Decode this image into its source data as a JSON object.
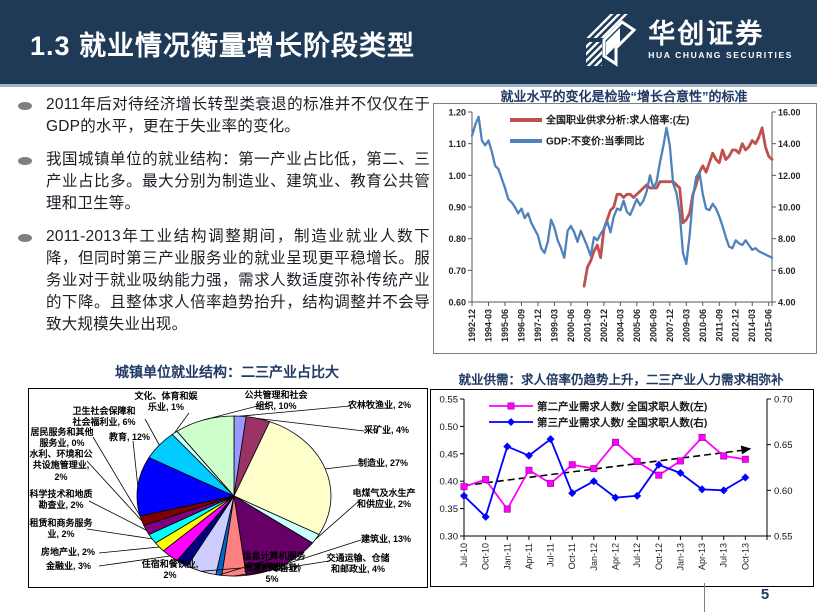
{
  "slide": {
    "header": {
      "title": "1.3 就业情况衡量增长阶段类型",
      "logo_cn": "华创证券",
      "logo_en": "HUA CHUANG SECURITIES"
    },
    "bullets": [
      "2011年后对待经济增长转型类衰退的标准并不仅仅在于GDP的水平，更在于失业率的变化。",
      "我国城镇单位的就业结构：第一产业占比低，第二、三产业占比多。最大分别为制造业、建筑业、教育公共管理和卫生等。",
      "2011-2013年工业结构调整期间，制造业就业人数下降，但同时第三产业服务业的就业呈现更平稳增长。服务业对于就业吸纳能力强，需求人数适度弥补传统产业的下降。且整体求人倍率趋势抬升，结构调整并不会导致大规模失业出现。"
    ],
    "page_number": "5"
  },
  "chart_data": [
    {
      "type": "line",
      "title": "就业水平的变化是检验“增长合意性”的标准",
      "x_labels": [
        "1992-12",
        "1994-03",
        "1995-06",
        "1996-09",
        "1997-12",
        "1999-03",
        "2000-06",
        "2001-09",
        "2002-12",
        "2004-03",
        "2005-06",
        "2006-09",
        "2007-12",
        "2009-03",
        "2010-06",
        "2011-09",
        "2012-12",
        "2014-03",
        "2015-06"
      ],
      "points_total": 92,
      "left_axis": {
        "min": 0.6,
        "max": 1.2,
        "step": 0.1,
        "ticks": [
          "1.20",
          "1.10",
          "1.00",
          "0.90",
          "0.80",
          "0.70",
          "0.60"
        ]
      },
      "right_axis": {
        "min": 4,
        "max": 16,
        "step": 2,
        "ticks": [
          "16.00",
          "14.00",
          "12.00",
          "10.00",
          "8.00",
          "6.00",
          "4.00"
        ]
      },
      "series": [
        {
          "name": "全国职业供求分析:求人倍率:(左)",
          "color": "#C0504D",
          "axis": "left",
          "width": 2.8,
          "start_index": 34,
          "values": [
            0.65,
            0.71,
            0.73,
            0.76,
            0.78,
            0.74,
            0.83,
            0.86,
            0.89,
            0.9,
            0.94,
            0.94,
            0.93,
            0.94,
            0.94,
            0.93,
            0.94,
            0.95,
            0.96,
            0.97,
            0.96,
            0.96,
            0.96,
            0.98,
            0.98,
            0.98,
            0.98,
            0.98,
            0.97,
            0.96,
            0.85,
            0.86,
            0.88,
            0.94,
            0.97,
            1.01,
            1.03,
            1.01,
            1.04,
            1.07,
            1.05,
            1.04,
            1.08,
            1.05,
            1.06,
            1.08,
            1.08,
            1.07,
            1.1,
            1.08,
            1.09,
            1.11,
            1.1,
            1.12,
            1.15,
            1.09,
            1.06,
            1.05
          ]
        },
        {
          "name": "GDP:不变价:当季同比",
          "color": "#4F81BD",
          "axis": "right",
          "width": 2.3,
          "start_index": 0,
          "values": [
            14.5,
            15.2,
            15.7,
            14.2,
            13.9,
            14.2,
            13.5,
            12.6,
            12.4,
            11.8,
            11.2,
            10.5,
            10.3,
            10.0,
            9.6,
            9.9,
            9.3,
            9.6,
            9.0,
            8.6,
            8.2,
            7.4,
            7.1,
            7.8,
            9.2,
            8.7,
            7.9,
            7.4,
            6.8,
            8.5,
            8.8,
            8.4,
            7.8,
            8.5,
            8.0,
            7.5,
            6.9,
            8.1,
            7.9,
            8.3,
            8.6,
            9.1,
            8.4,
            9.4,
            9.9,
            9.8,
            10.4,
            9.7,
            9.5,
            10.0,
            10.5,
            10.1,
            10.4,
            11.0,
            12.0,
            11.2,
            11.6,
            12.8,
            13.8,
            15.0,
            13.9,
            11.5,
            10.9,
            9.6,
            7.1,
            6.4,
            8.2,
            10.6,
            11.9,
            12.2,
            10.8,
            9.9,
            9.8,
            10.2,
            9.9,
            9.4,
            8.8,
            8.1,
            7.5,
            7.4,
            7.9,
            7.7,
            7.6,
            7.9,
            7.6,
            7.3,
            7.4,
            7.2,
            7.1,
            7.0,
            6.9,
            6.8
          ]
        }
      ]
    },
    {
      "type": "pie",
      "title": "城镇单位就业结构：二三产业占比大",
      "slices": [
        {
          "label": "农林牧渔业",
          "value": 2,
          "color": "#9999FF"
        },
        {
          "label": "采矿业",
          "value": 4,
          "color": "#993366"
        },
        {
          "label": "制造业",
          "value": 27,
          "color": "#FFFFCC"
        },
        {
          "label": "电煤气及水生产和供应业",
          "value": 2,
          "color": "#CCFFFF"
        },
        {
          "label": "建筑业",
          "value": 13,
          "color": "#660066"
        },
        {
          "label": "交通运输、仓储和邮政业",
          "value": 4,
          "color": "#FF8080"
        },
        {
          "label": "信息计算机服务和软件业",
          "value": 1,
          "color": "#0066CC"
        },
        {
          "label": "批发和零售业",
          "value": 5,
          "color": "#CCCCFF"
        },
        {
          "label": "住宿和餐饮业",
          "value": 2,
          "color": "#000080"
        },
        {
          "label": "金融业",
          "value": 3,
          "color": "#FF00FF"
        },
        {
          "label": "房地产业",
          "value": 2,
          "color": "#FFFF00"
        },
        {
          "label": "租赁和商务服务业",
          "value": 2,
          "color": "#00FFFF"
        },
        {
          "label": "科学技术和地质勘查业",
          "value": 2,
          "color": "#800080"
        },
        {
          "label": "水利、环境和公共设施管理业",
          "value": 2,
          "color": "#800000"
        },
        {
          "label": "居民服务和其他服务业",
          "value": 0,
          "color": "#008080"
        },
        {
          "label": "教育",
          "value": 12,
          "color": "#0000FF"
        },
        {
          "label": "卫生社会保障和社会福利业",
          "value": 6,
          "color": "#00CCFF"
        },
        {
          "label": "文化、体育和娱乐业",
          "value": 1,
          "color": "#CCFFFF"
        },
        {
          "label": "公共管理和社会组织",
          "value": 10,
          "color": "#CCFFCC"
        }
      ]
    },
    {
      "type": "line",
      "title": "就业供需：求人倍率仍趋势上升，二三产业人力需求相弥补",
      "x_labels": [
        "Jul-10",
        "Oct-10",
        "Jan-11",
        "Apr-11",
        "Jul-11",
        "Oct-11",
        "Jan-12",
        "Apr-12",
        "Jul-12",
        "Oct-12",
        "Jan-13",
        "Apr-13",
        "Jul-13",
        "Oct-13"
      ],
      "left_axis": {
        "min": 0.3,
        "max": 0.55,
        "step": 0.05,
        "ticks": [
          "0.55",
          "0.50",
          "0.45",
          "0.40",
          "0.35",
          "0.30"
        ]
      },
      "right_axis": {
        "min": 0.55,
        "max": 0.7,
        "step": 0.05,
        "ticks": [
          "0.70",
          "0.65",
          "0.60",
          "0.55"
        ]
      },
      "series": [
        {
          "name": "第二产业需求人数/ 全国求职人数(左)",
          "color": "#FF00FF",
          "marker": "square",
          "axis": "left",
          "values": [
            0.39,
            0.403,
            0.349,
            0.42,
            0.396,
            0.43,
            0.423,
            0.471,
            0.436,
            0.411,
            0.437,
            0.48,
            0.446,
            0.44
          ]
        },
        {
          "name": "第三产业需求人数/ 全国求职人数(右)",
          "color": "#0000FF",
          "marker": "diamond",
          "axis": "right",
          "values": [
            0.594,
            0.571,
            0.648,
            0.638,
            0.656,
            0.597,
            0.61,
            0.592,
            0.594,
            0.628,
            0.619,
            0.601,
            0.6,
            0.614
          ]
        }
      ],
      "trendline": {
        "axis": "left",
        "start": 0.392,
        "end": 0.458,
        "color": "#000000",
        "style": "dashed"
      }
    }
  ]
}
